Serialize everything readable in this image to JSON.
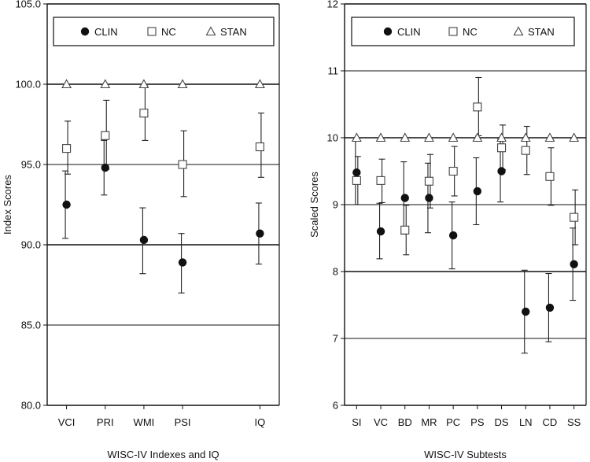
{
  "chart_data": [
    {
      "type": "scatter",
      "id": "left",
      "xlabel": "WISC-IV Indexes and IQ",
      "ylabel": "Index Scores",
      "ylim": [
        80,
        105
      ],
      "yticks": [
        80,
        85,
        90,
        95,
        100,
        105
      ],
      "ytick_labels": [
        "80.0",
        "85.0",
        "90.0",
        "95.0",
        "100.0",
        "105.0"
      ],
      "categories": [
        "VCI",
        "PRI",
        "WMI",
        "PSI",
        "IQ"
      ],
      "category_slots": [
        0,
        1,
        2,
        3,
        5
      ],
      "slot_count": 6,
      "gridlines": [
        85,
        90,
        95,
        100,
        105
      ],
      "legend": {
        "position": "top",
        "entries": [
          "CLIN",
          "NC",
          "STAN"
        ]
      },
      "series": [
        {
          "name": "CLIN",
          "marker": "filled-circle",
          "values": [
            92.5,
            94.8,
            90.3,
            88.9,
            90.7
          ],
          "err_low": [
            90.4,
            93.1,
            88.2,
            87.0,
            88.8
          ],
          "err_high": [
            94.6,
            96.5,
            92.3,
            90.7,
            92.6
          ]
        },
        {
          "name": "NC",
          "marker": "open-square",
          "values": [
            96.0,
            96.8,
            98.2,
            95.0,
            96.1
          ],
          "err_low": [
            94.4,
            94.7,
            96.5,
            93.0,
            94.2
          ],
          "err_high": [
            97.7,
            99.0,
            99.9,
            97.1,
            98.2
          ]
        },
        {
          "name": "STAN",
          "marker": "open-triangle",
          "values": [
            100,
            100,
            100,
            100,
            100
          ]
        }
      ]
    },
    {
      "type": "scatter",
      "id": "right",
      "xlabel": "WISC-IV Subtests",
      "ylabel": "Scaled Scores",
      "ylim": [
        6,
        12
      ],
      "yticks": [
        6,
        7,
        8,
        9,
        10,
        11,
        12
      ],
      "ytick_labels": [
        "6",
        "7",
        "8",
        "9",
        "10",
        "11",
        "12"
      ],
      "categories": [
        "SI",
        "VC",
        "BD",
        "MR",
        "PC",
        "PS",
        "DS",
        "LN",
        "CD",
        "SS"
      ],
      "category_slots": [
        0,
        1,
        2,
        3,
        4,
        5,
        6,
        7,
        8,
        9
      ],
      "slot_count": 10,
      "gridlines": [
        7,
        8,
        9,
        10,
        11,
        12
      ],
      "legend": {
        "position": "top",
        "entries": [
          "CLIN",
          "NC",
          "STAN"
        ]
      },
      "series": [
        {
          "name": "CLIN",
          "marker": "filled-circle",
          "values": [
            9.48,
            8.6,
            9.1,
            9.1,
            8.54,
            9.2,
            9.5,
            7.4,
            7.46,
            8.11
          ],
          "err_low": [
            9.0,
            8.19,
            8.56,
            8.58,
            8.04,
            8.7,
            9.04,
            6.78,
            6.95,
            7.57
          ],
          "err_high": [
            9.96,
            9.02,
            9.64,
            9.62,
            9.04,
            9.7,
            9.98,
            8.02,
            7.97,
            8.65
          ]
        },
        {
          "name": "NC",
          "marker": "open-square",
          "values": [
            9.36,
            9.36,
            8.62,
            9.35,
            9.5,
            10.46,
            9.85,
            9.81,
            9.42,
            8.81
          ],
          "err_low": [
            9.0,
            9.03,
            8.25,
            8.95,
            9.13,
            10.03,
            9.52,
            9.45,
            8.99,
            8.4
          ],
          "err_high": [
            9.72,
            9.68,
            8.99,
            9.75,
            9.87,
            10.9,
            10.19,
            10.17,
            9.85,
            9.22
          ]
        },
        {
          "name": "STAN",
          "marker": "open-triangle",
          "values": [
            10,
            10,
            10,
            10,
            10,
            10,
            10,
            10,
            10,
            10
          ]
        }
      ]
    }
  ]
}
